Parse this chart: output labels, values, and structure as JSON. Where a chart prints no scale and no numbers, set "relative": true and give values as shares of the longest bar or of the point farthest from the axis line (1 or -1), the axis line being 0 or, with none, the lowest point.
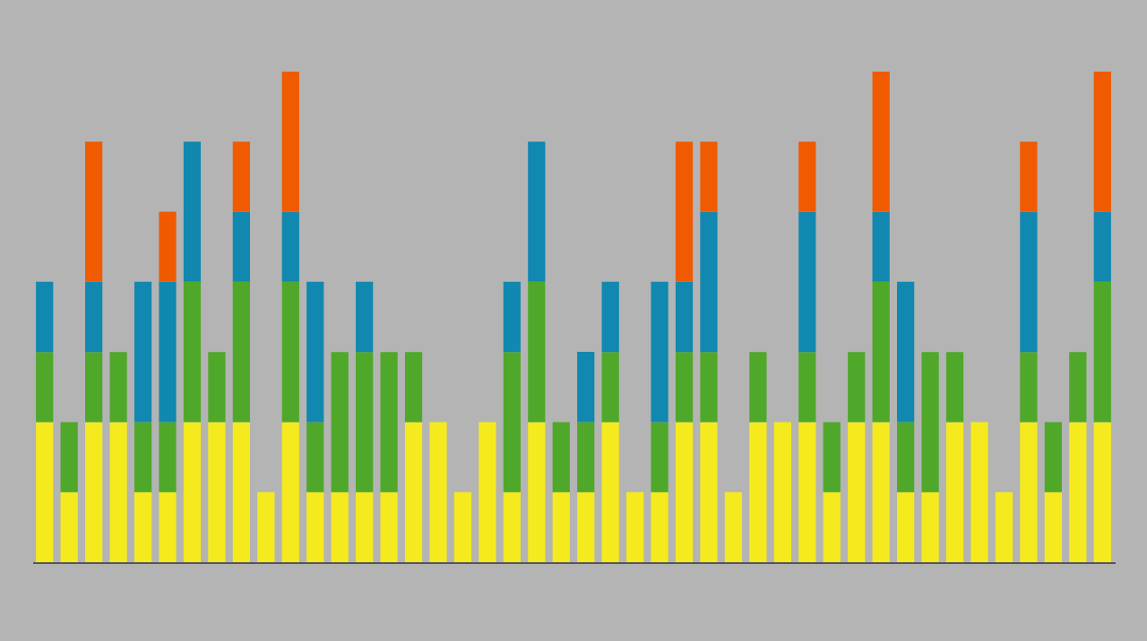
{
  "chart_data": {
    "type": "bar",
    "relative": true,
    "stacked": true,
    "categories": [
      null,
      null,
      null,
      null,
      null,
      null,
      null,
      null,
      null,
      null,
      null,
      null,
      null,
      null,
      null,
      null,
      null,
      null,
      null,
      null,
      null,
      null,
      null,
      null,
      null,
      null,
      null,
      null,
      null,
      null,
      null,
      null,
      null,
      null,
      null,
      null,
      null,
      null,
      null,
      null,
      null,
      null,
      null,
      null
    ],
    "series": [
      {
        "color": "#f5ea1e",
        "values": [
          0.2857,
          0.1429,
          0.2857,
          0.2857,
          0.1429,
          0.1429,
          0.2857,
          0.2857,
          0.2857,
          0.1429,
          0.2857,
          0.1429,
          0.1429,
          0.1429,
          0.1429,
          0.2857,
          0.2857,
          0.1429,
          0.2857,
          0.1429,
          0.2857,
          0.1429,
          0.1429,
          0.2857,
          0.1429,
          0.1429,
          0.2857,
          0.2857,
          0.1429,
          0.2857,
          0.2857,
          0.2857,
          0.1429,
          0.2857,
          0.2857,
          0.1429,
          0.1429,
          0.2857,
          0.2857,
          0.1429,
          0.2857,
          0.1429,
          0.2857,
          0.2857
        ]
      },
      {
        "color": "#4fa82a",
        "values": [
          0.1429,
          0.1429,
          0.1429,
          0.1429,
          0.1429,
          0.1429,
          0.2857,
          0.1429,
          0.2857,
          null,
          0.2857,
          0.1429,
          0.2857,
          0.2857,
          0.2857,
          0.1429,
          null,
          null,
          null,
          0.2857,
          0.2857,
          0.1429,
          0.1429,
          0.1429,
          null,
          0.1429,
          0.1429,
          0.1429,
          null,
          0.1429,
          null,
          0.1429,
          0.1429,
          0.1429,
          0.2857,
          0.1429,
          0.2857,
          0.1429,
          null,
          null,
          0.1429,
          0.1429,
          0.1429,
          0.2857
        ]
      },
      {
        "color": "#1088b0",
        "values": [
          0.1429,
          null,
          0.1429,
          null,
          0.2857,
          0.2857,
          0.2857,
          null,
          0.1429,
          null,
          0.1429,
          0.2857,
          null,
          0.1429,
          null,
          null,
          null,
          null,
          null,
          0.1429,
          0.2857,
          null,
          0.1429,
          0.1429,
          null,
          0.2857,
          0.1429,
          0.2857,
          null,
          null,
          null,
          0.2857,
          null,
          null,
          0.1429,
          0.2857,
          null,
          null,
          null,
          null,
          0.2857,
          null,
          null,
          0.1429
        ]
      },
      {
        "color": "#f05a00",
        "values": [
          null,
          null,
          0.2857,
          null,
          null,
          0.1429,
          null,
          null,
          0.1429,
          null,
          0.2857,
          null,
          null,
          null,
          null,
          null,
          null,
          null,
          null,
          null,
          null,
          null,
          null,
          null,
          null,
          null,
          0.2857,
          0.1429,
          null,
          null,
          null,
          0.1429,
          null,
          null,
          0.2857,
          null,
          null,
          null,
          null,
          null,
          0.1429,
          null,
          null,
          0.2857
        ]
      }
    ]
  }
}
